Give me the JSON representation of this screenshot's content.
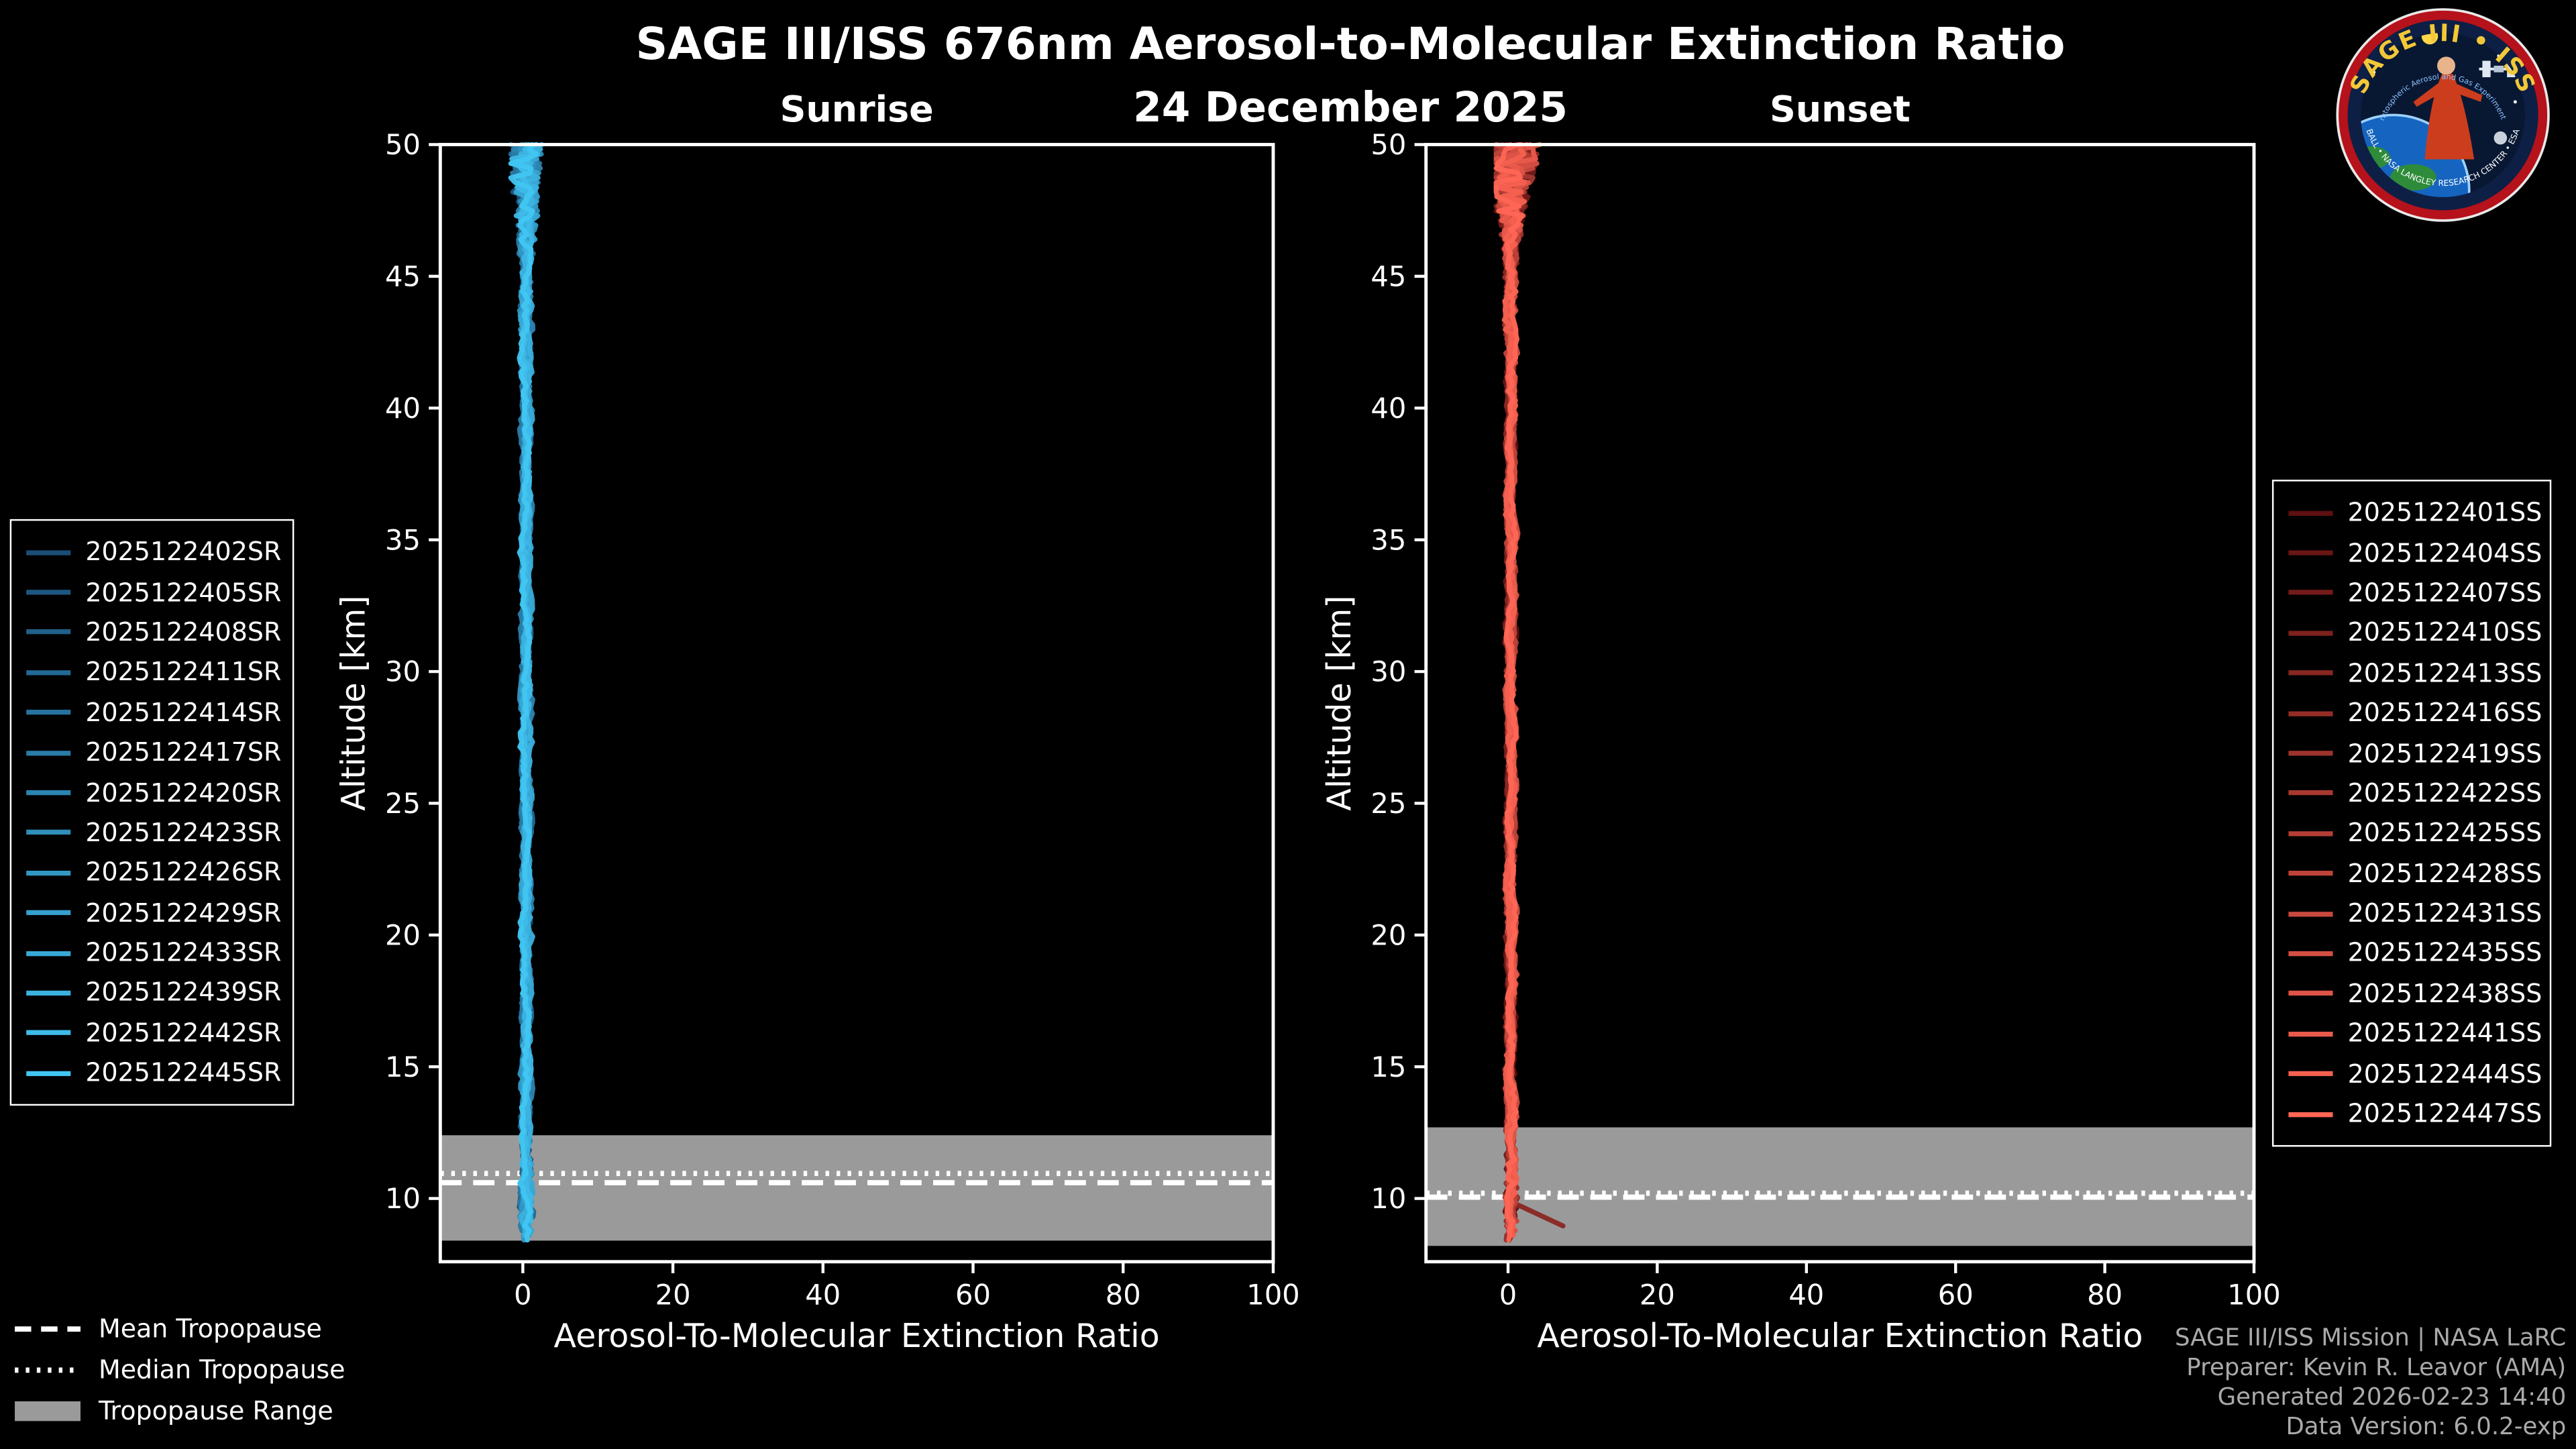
{
  "header": {
    "title": "SAGE III/ISS 676nm Aerosol-to-Molecular Extinction Ratio",
    "date": "24 December 2025"
  },
  "tropopause_legend": {
    "mean": "Mean Tropopause",
    "median": "Median Tropopause",
    "range": "Tropopause Range"
  },
  "footer": {
    "lines": [
      "SAGE III/ISS Mission | NASA LaRC",
      "Preparer: Kevin R. Leavor (AMA)",
      "Generated 2026-02-23 14:40",
      "Data Version: 6.0.2-exp"
    ]
  },
  "logo": {
    "arc_top": "SAGE III • ISS",
    "tagline": "Stratospheric Aerosol and Gas Experiment III",
    "arc_bottom": "BALL • NASA LANGLEY RESEARCH CENTER • ESA"
  },
  "colors": {
    "background": "#000000",
    "axes": "#ffffff",
    "tropopause_band": "#9a9a9a",
    "tropopause_lines": "#ffffff",
    "footer_text": "#aaaaaa"
  },
  "chart_data": [
    {
      "id": "sunrise",
      "type": "line",
      "title": "Sunrise",
      "xlabel": "Aerosol-To-Molecular Extinction Ratio",
      "ylabel": "Altitude [km]",
      "xlim": [
        -11,
        100
      ],
      "ylim": [
        7.6,
        50
      ],
      "xticks": [
        0,
        20,
        40,
        60,
        80,
        100
      ],
      "yticks": [
        10,
        15,
        20,
        25,
        30,
        35,
        40,
        45,
        50
      ],
      "grid": false,
      "legend_position": "outside-left",
      "tropopause": {
        "mean_km": 10.6,
        "median_km": 10.95,
        "range_km": [
          8.4,
          12.4
        ]
      },
      "profile_note": "All sunrise profiles hug ratio 0-2 from ~8.3 km to 50 km; noise amplitude grows above ~46 km and below ~11 km",
      "series": [
        {
          "name": "2025122402SR",
          "color": "#1a4e78"
        },
        {
          "name": "2025122405SR",
          "color": "#1d5781"
        },
        {
          "name": "2025122408SR",
          "color": "#20608b"
        },
        {
          "name": "2025122411SR",
          "color": "#236994"
        },
        {
          "name": "2025122414SR",
          "color": "#26729e"
        },
        {
          "name": "2025122417SR",
          "color": "#297ca7"
        },
        {
          "name": "2025122420SR",
          "color": "#2c85b1"
        },
        {
          "name": "2025122423SR",
          "color": "#2f8eba"
        },
        {
          "name": "2025122426SR",
          "color": "#3297c3"
        },
        {
          "name": "2025122429SR",
          "color": "#35a0cd"
        },
        {
          "name": "2025122433SR",
          "color": "#38a9d6"
        },
        {
          "name": "2025122439SR",
          "color": "#3bb2e0"
        },
        {
          "name": "2025122442SR",
          "color": "#3ebbe9"
        },
        {
          "name": "2025122445SR",
          "color": "#41c6f2"
        }
      ]
    },
    {
      "id": "sunset",
      "type": "line",
      "title": "Sunset",
      "xlabel": "Aerosol-To-Molecular Extinction Ratio",
      "ylabel": "Altitude [km]",
      "xlim": [
        -11,
        100
      ],
      "ylim": [
        7.6,
        50
      ],
      "xticks": [
        0,
        20,
        40,
        60,
        80,
        100
      ],
      "yticks": [
        10,
        15,
        20,
        25,
        30,
        35,
        40,
        45,
        50
      ],
      "grid": false,
      "legend_position": "outside-right",
      "tropopause": {
        "mean_km": 10.05,
        "median_km": 10.2,
        "range_km": [
          8.2,
          12.7
        ]
      },
      "profile_note": "All sunset profiles hug ratio 0-2 from ~8.3 km to 50 km; wider noise above ~46 km; one dark-red profile spurs to ratio ~8 near 9 km",
      "excursions": [
        {
          "series": 4,
          "alt_start": 9.9,
          "alt_end": 8.85,
          "ratio": 8.2
        }
      ],
      "series": [
        {
          "name": "2025122401SS",
          "color": "#5e1010"
        },
        {
          "name": "2025122404SS",
          "color": "#691615"
        },
        {
          "name": "2025122407SS",
          "color": "#741b1a"
        },
        {
          "name": "2025122410SS",
          "color": "#7e211e"
        },
        {
          "name": "2025122413SS",
          "color": "#892723"
        },
        {
          "name": "2025122416SS",
          "color": "#942d27"
        },
        {
          "name": "2025122419SS",
          "color": "#9e322c"
        },
        {
          "name": "2025122422SS",
          "color": "#a93830"
        },
        {
          "name": "2025122425SS",
          "color": "#b43e35"
        },
        {
          "name": "2025122428SS",
          "color": "#be4339"
        },
        {
          "name": "2025122431SS",
          "color": "#c9493e"
        },
        {
          "name": "2025122435SS",
          "color": "#d44f42"
        },
        {
          "name": "2025122438SS",
          "color": "#de5447"
        },
        {
          "name": "2025122441SS",
          "color": "#e95a4b"
        },
        {
          "name": "2025122444SS",
          "color": "#f4604f"
        },
        {
          "name": "2025122447SS",
          "color": "#ff6655"
        }
      ]
    }
  ]
}
